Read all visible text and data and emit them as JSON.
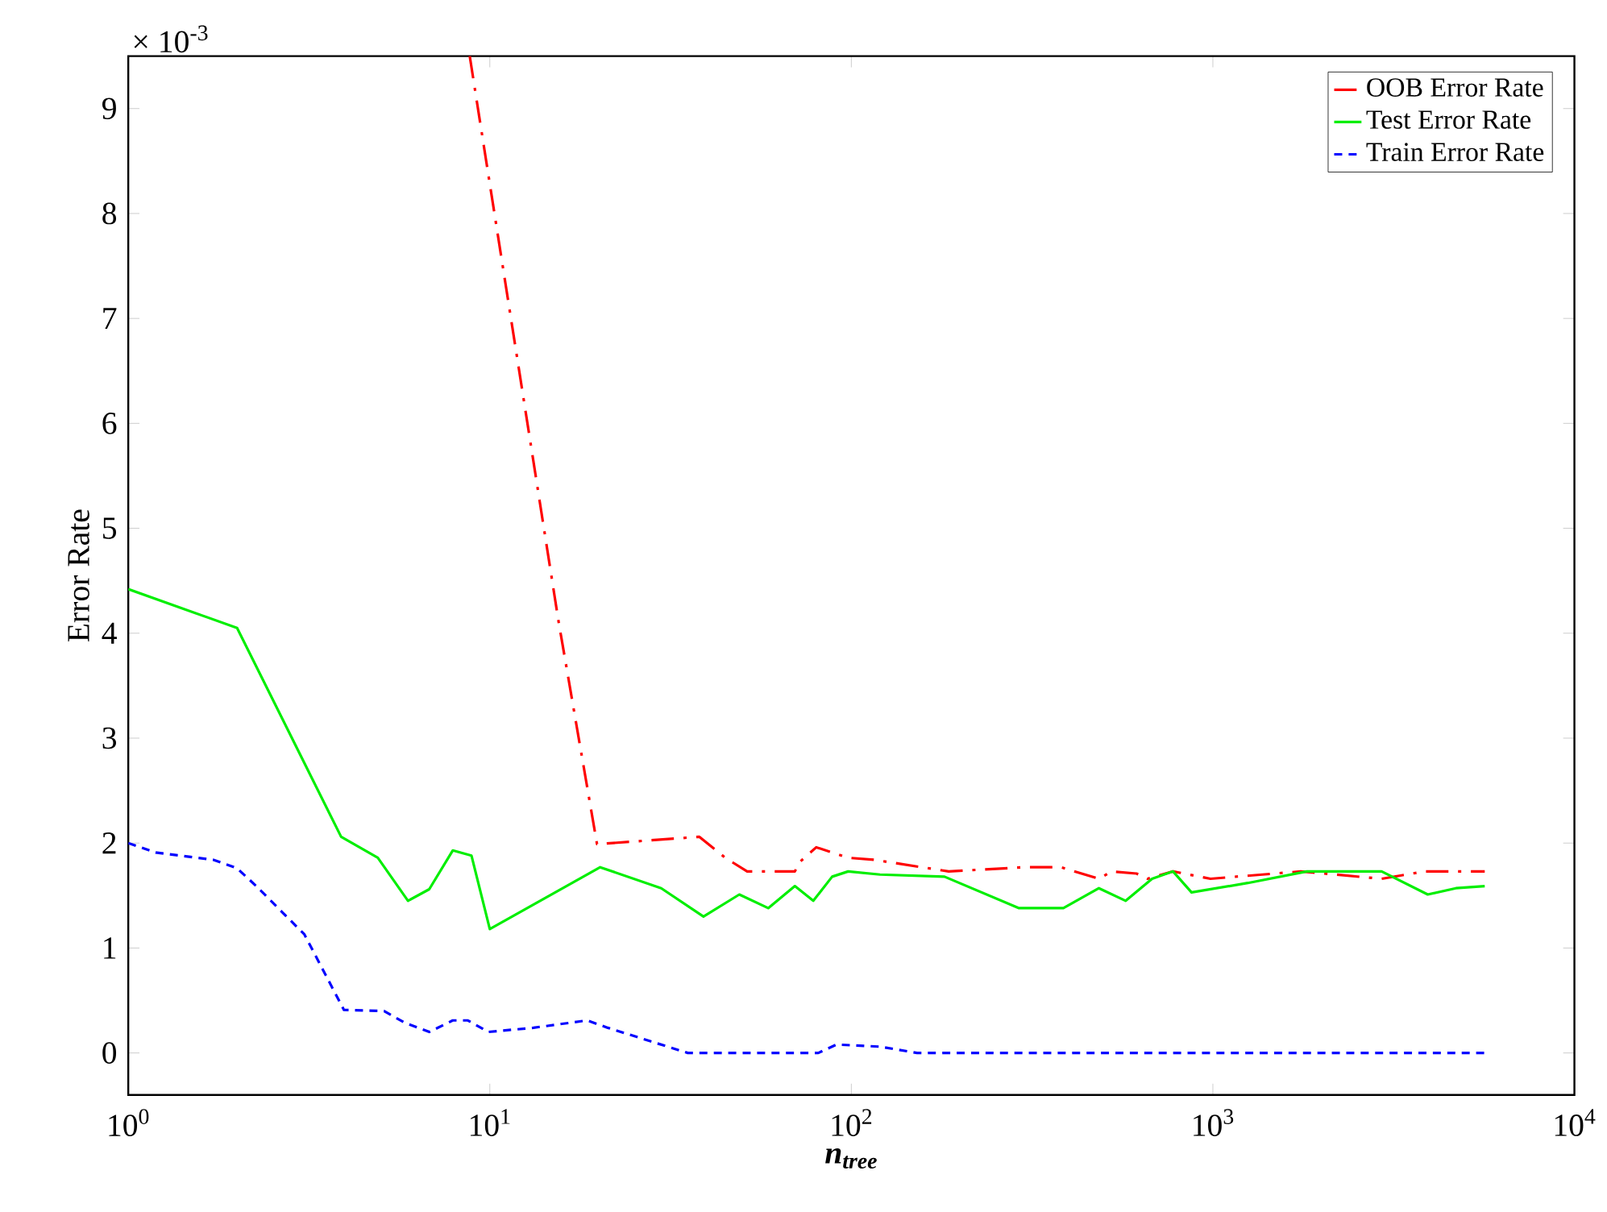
{
  "chart_data": {
    "type": "line",
    "xlabel": "n$_{tree}$",
    "ylabel": "Error Rate",
    "annotations": [
      "× 10$^{-3}$"
    ],
    "log": "x",
    "legend": "top right",
    "grid": false,
    "xlim": [
      1,
      10000
    ],
    "ylim": [
      -0.4,
      9.5
    ],
    "xticks": [
      {
        "value": 1,
        "label": "10$^{0}$"
      },
      {
        "value": 10,
        "label": "10$^{1}$"
      },
      {
        "value": 100,
        "label": "10$^{2}$"
      },
      {
        "value": 1000,
        "label": "10$^{3}$"
      },
      {
        "value": 10000,
        "label": "10$^{4}$"
      }
    ],
    "yticks": [
      0,
      1,
      2,
      3,
      4,
      5,
      6,
      7,
      8,
      9
    ],
    "series": [
      {
        "name": "OOB Error Rate",
        "color": "#ff0000",
        "line_style": "dashdot",
        "x": [
          8.8,
          15.5,
          19.8,
          38,
          44.8,
          51.5,
          69.8,
          72,
          80,
          98,
          116,
          186,
          300,
          380,
          484,
          525,
          615,
          660,
          776,
          985,
          1750,
          2930,
          3850,
          5650
        ],
        "values": [
          9.5,
          4.11,
          1.99,
          2.06,
          1.86,
          1.73,
          1.73,
          1.82,
          1.96,
          1.86,
          1.84,
          1.73,
          1.77,
          1.77,
          1.66,
          1.73,
          1.71,
          1.66,
          1.73,
          1.66,
          1.73,
          1.66,
          1.73,
          1.73
        ]
      },
      {
        "name": "Test Error Rate",
        "color": "#00ee00",
        "line_style": "solid",
        "x": [
          1,
          2,
          3.88,
          4.9,
          5.94,
          6.8,
          7.9,
          8.9,
          10,
          20.2,
          29.8,
          39,
          49,
          58.9,
          69.8,
          78.5,
          88.5,
          98,
          120,
          181,
          291,
          386,
          484,
          574,
          679,
          776,
          873,
          1250,
          1820,
          2930,
          3930,
          4700,
          5650
        ],
        "values": [
          4.42,
          4.05,
          2.06,
          1.86,
          1.45,
          1.56,
          1.93,
          1.88,
          1.18,
          1.77,
          1.57,
          1.3,
          1.51,
          1.38,
          1.59,
          1.45,
          1.68,
          1.73,
          1.7,
          1.68,
          1.38,
          1.38,
          1.57,
          1.45,
          1.66,
          1.73,
          1.53,
          1.62,
          1.73,
          1.73,
          1.51,
          1.57,
          1.59
        ]
      },
      {
        "name": "Train Error Rate",
        "color": "#0000ff",
        "line_style": "dashed",
        "x": [
          1,
          1.19,
          1.72,
          2,
          2.26,
          3.07,
          3.95,
          5.1,
          5.8,
          6.8,
          7.9,
          8.7,
          9.9,
          13.2,
          18.6,
          21.2,
          27.9,
          35.3,
          81,
          91,
          120,
          152,
          5650
        ],
        "values": [
          2.0,
          1.91,
          1.84,
          1.76,
          1.59,
          1.13,
          0.41,
          0.4,
          0.29,
          0.2,
          0.31,
          0.31,
          0.2,
          0.24,
          0.31,
          0.24,
          0.11,
          0,
          0,
          0.08,
          0.06,
          0,
          0
        ]
      }
    ]
  }
}
